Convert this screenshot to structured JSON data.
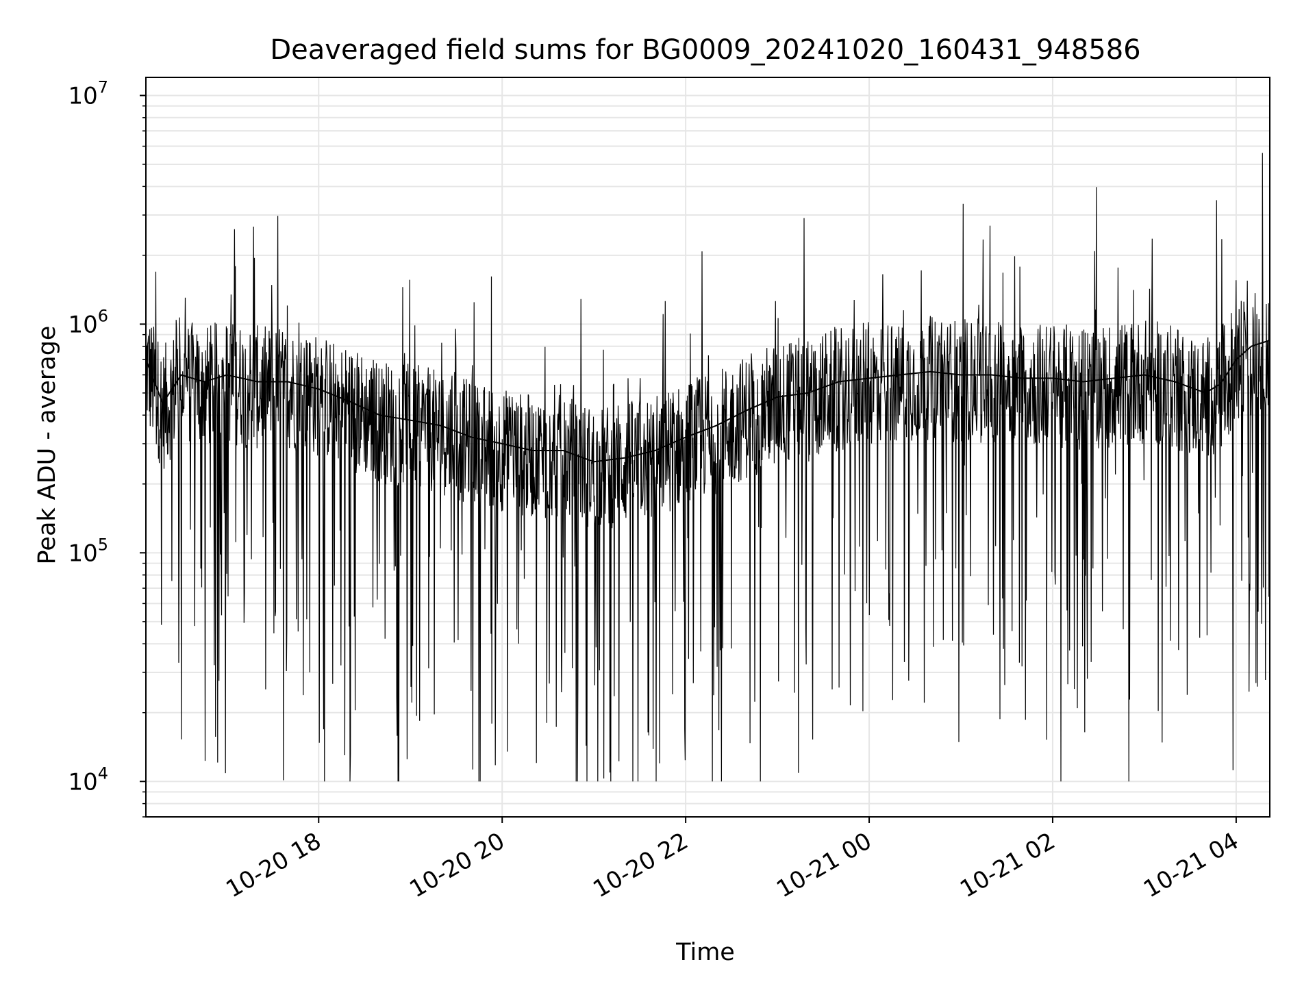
{
  "chart_data": {
    "type": "line",
    "title": "Deaveraged field sums for BG0009_20241020_160431_948586",
    "xlabel": "Time",
    "ylabel": "Peak ADU - average",
    "yscale": "log",
    "ylim": [
      7000,
      12000000
    ],
    "xlim": [
      "2024-10-20T16:07:00",
      "2024-10-21T04:22:00"
    ],
    "grid": true,
    "legend": "none",
    "colors": {
      "line": "#000000",
      "grid": "#e6e6e6",
      "axes": "#000000",
      "background": "#ffffff"
    },
    "x_ticks": [
      {
        "value": "2024-10-20T18:00:00",
        "label": "10-20 18"
      },
      {
        "value": "2024-10-20T20:00:00",
        "label": "10-20 20"
      },
      {
        "value": "2024-10-20T22:00:00",
        "label": "10-20 22"
      },
      {
        "value": "2024-10-21T00:00:00",
        "label": "10-21 00"
      },
      {
        "value": "2024-10-21T02:00:00",
        "label": "10-21 02"
      },
      {
        "value": "2024-10-21T04:00:00",
        "label": "10-21 04"
      }
    ],
    "y_ticks": [
      {
        "value": 10000,
        "base": "10",
        "exp": "4"
      },
      {
        "value": 100000,
        "base": "10",
        "exp": "5"
      },
      {
        "value": 1000000,
        "base": "10",
        "exp": "6"
      },
      {
        "value": 10000000,
        "base": "10",
        "exp": "7"
      }
    ],
    "series": [
      {
        "points": [
          [
            "2024-10-20T16:07:00",
            700000
          ],
          [
            "2024-10-20T16:18:00",
            450000
          ],
          [
            "2024-10-20T16:30:00",
            600000
          ],
          [
            "2024-10-20T16:45:00",
            560000
          ],
          [
            "2024-10-20T17:00:00",
            600000
          ],
          [
            "2024-10-20T17:20:00",
            560000
          ],
          [
            "2024-10-20T17:40:00",
            560000
          ],
          [
            "2024-10-20T18:00:00",
            520000
          ],
          [
            "2024-10-20T18:20:00",
            460000
          ],
          [
            "2024-10-20T18:40:00",
            400000
          ],
          [
            "2024-10-20T19:00:00",
            380000
          ],
          [
            "2024-10-20T19:20:00",
            360000
          ],
          [
            "2024-10-20T19:40:00",
            320000
          ],
          [
            "2024-10-20T20:00:00",
            300000
          ],
          [
            "2024-10-20T20:20:00",
            280000
          ],
          [
            "2024-10-20T20:40:00",
            280000
          ],
          [
            "2024-10-20T21:00:00",
            250000
          ],
          [
            "2024-10-20T21:20:00",
            260000
          ],
          [
            "2024-10-20T21:40:00",
            280000
          ],
          [
            "2024-10-20T22:00:00",
            320000
          ],
          [
            "2024-10-20T22:20:00",
            360000
          ],
          [
            "2024-10-20T22:40:00",
            420000
          ],
          [
            "2024-10-20T23:00:00",
            480000
          ],
          [
            "2024-10-20T23:20:00",
            500000
          ],
          [
            "2024-10-20T23:40:00",
            560000
          ],
          [
            "2024-10-21T00:00:00",
            580000
          ],
          [
            "2024-10-21T00:20:00",
            600000
          ],
          [
            "2024-10-21T00:40:00",
            620000
          ],
          [
            "2024-10-21T01:00:00",
            600000
          ],
          [
            "2024-10-21T01:20:00",
            600000
          ],
          [
            "2024-10-21T01:40:00",
            580000
          ],
          [
            "2024-10-21T02:00:00",
            580000
          ],
          [
            "2024-10-21T02:20:00",
            560000
          ],
          [
            "2024-10-21T02:40:00",
            580000
          ],
          [
            "2024-10-21T03:00:00",
            600000
          ],
          [
            "2024-10-21T03:20:00",
            560000
          ],
          [
            "2024-10-21T03:40:00",
            500000
          ],
          [
            "2024-10-21T03:50:00",
            550000
          ],
          [
            "2024-10-21T04:00:00",
            700000
          ],
          [
            "2024-10-21T04:10:00",
            800000
          ],
          [
            "2024-10-21T04:22:00",
            850000
          ]
        ]
      }
    ]
  }
}
